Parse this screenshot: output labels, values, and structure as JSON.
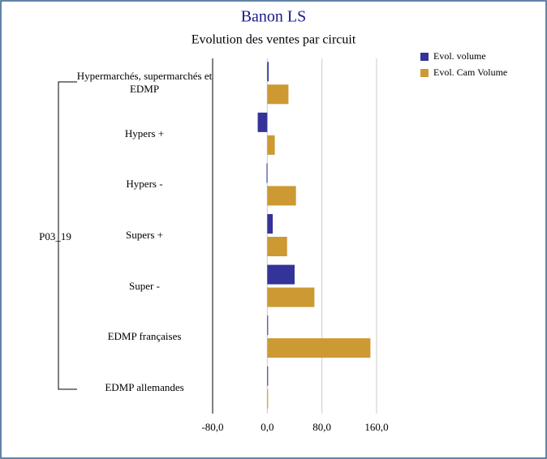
{
  "chart_data": {
    "type": "bar",
    "orientation": "horizontal",
    "title": "Banon LS",
    "subtitle": "Evolution des ventes par circuit",
    "group_label": "P03_19",
    "categories": [
      "Hypermarchés, supermarchés et EDMP",
      "Hypers +",
      "Hypers -",
      "Supers +",
      "Super -",
      "EDMP françaises",
      "EDMP allemandes"
    ],
    "series": [
      {
        "name": "Evol. volume",
        "color": "#333399",
        "values": [
          2,
          -14,
          -1,
          8,
          40,
          1,
          1
        ]
      },
      {
        "name": "Evol. Cam Volume",
        "color": "#cc9933",
        "values": [
          31,
          11,
          42,
          29,
          69,
          151,
          1
        ]
      }
    ],
    "xlim": [
      -80,
      160
    ],
    "xticks": [
      {
        "value": -80,
        "label": "-80,0"
      },
      {
        "value": 0,
        "label": "0,0"
      },
      {
        "value": 80,
        "label": "80,0"
      },
      {
        "value": 160,
        "label": "160,0"
      }
    ],
    "grid": true,
    "legend": "top-right"
  }
}
